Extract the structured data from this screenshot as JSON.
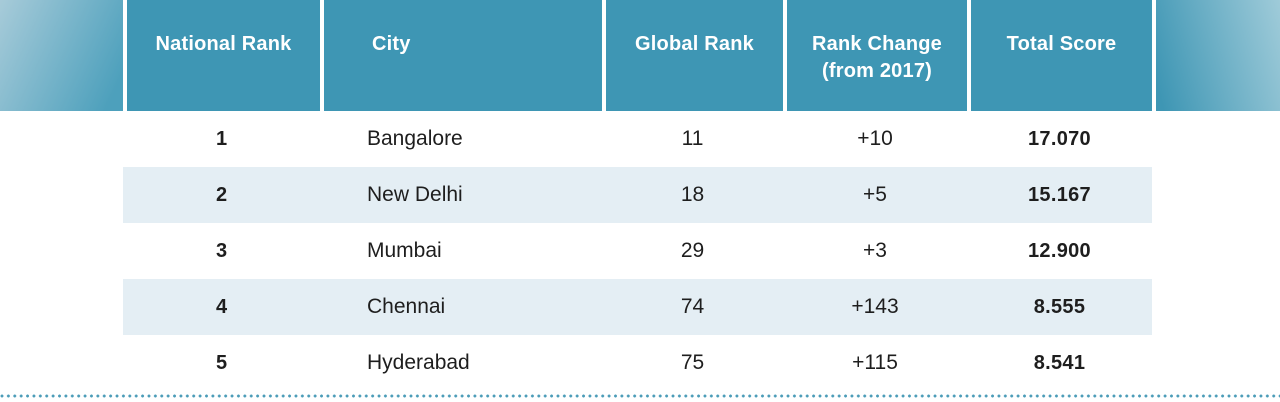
{
  "table": {
    "header": {
      "national_rank": "National Rank",
      "city": "City",
      "global_rank": "Global Rank",
      "rank_change": "Rank Change\n(from 2017)",
      "total_score": "Total Score"
    },
    "rows": [
      {
        "national_rank": "1",
        "city": "Bangalore",
        "global_rank": "11",
        "rank_change": "+10",
        "total_score": "17.070"
      },
      {
        "national_rank": "2",
        "city": "New Delhi",
        "global_rank": "18",
        "rank_change": "+5",
        "total_score": "15.167"
      },
      {
        "national_rank": "3",
        "city": "Mumbai",
        "global_rank": "29",
        "rank_change": "+3",
        "total_score": "12.900"
      },
      {
        "national_rank": "4",
        "city": "Chennai",
        "global_rank": "74",
        "rank_change": "+143",
        "total_score": "8.555"
      },
      {
        "national_rank": "5",
        "city": "Hyderabad",
        "global_rank": "75",
        "rank_change": "+115",
        "total_score": "8.541"
      }
    ]
  },
  "colors": {
    "header_teal": "#3e96b4",
    "header_gradient_light": "#a7cbd9",
    "header_gradient_light_right": "#9fcbd9",
    "stripe": "#e4eef4",
    "text_dark": "#1e1e1e",
    "header_text": "#ffffff",
    "dotted_line": "#4b9cb8"
  }
}
